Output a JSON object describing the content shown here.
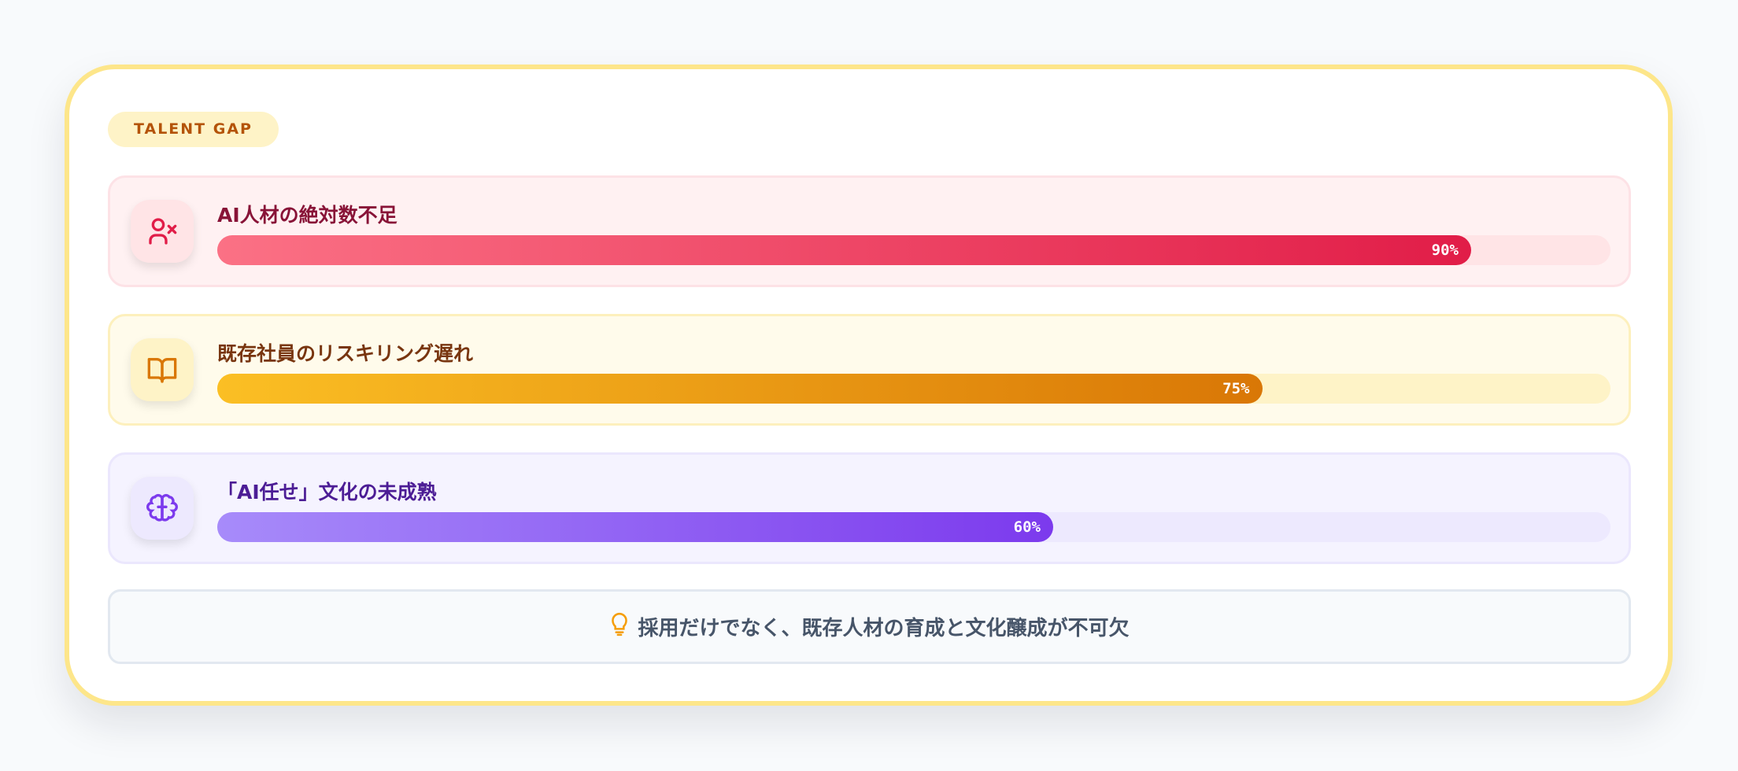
{
  "badge": "TALENT GAP",
  "items": [
    {
      "title": "AI人材の絶対数不足",
      "percent": 90,
      "percent_label": "90%",
      "icon": "user-x-icon",
      "colors": {
        "bg": "#fff1f2",
        "border": "#fde2e6",
        "title": "#881337",
        "track": "#ffe4e6",
        "from": "#fb7185",
        "to": "#e11d48",
        "icon": "#e11d48",
        "ibox": "#ffe4e6"
      }
    },
    {
      "title": "既存社員のリスキリング遅れ",
      "percent": 75,
      "percent_label": "75%",
      "icon": "book-open-icon",
      "colors": {
        "bg": "#fffbeb",
        "border": "#fdf0bd",
        "title": "#78350f",
        "track": "#fef3c7",
        "from": "#fbbf24",
        "to": "#d97706",
        "icon": "#d97706",
        "ibox": "#fef3c7"
      }
    },
    {
      "title": "「AI任せ」文化の未成熟",
      "percent": 60,
      "percent_label": "60%",
      "icon": "brain-icon",
      "colors": {
        "bg": "#f5f3ff",
        "border": "#ebe7fd",
        "title": "#4c1d95",
        "track": "#ede9fe",
        "from": "#a78bfa",
        "to": "#7c3aed",
        "icon": "#7c3aed",
        "ibox": "#ede9fe"
      }
    }
  ],
  "footer": {
    "text": "採用だけでなく、既存人材の育成と文化醸成が不可欠",
    "icon": "lightbulb-icon",
    "icon_color": "#f59e0b"
  }
}
